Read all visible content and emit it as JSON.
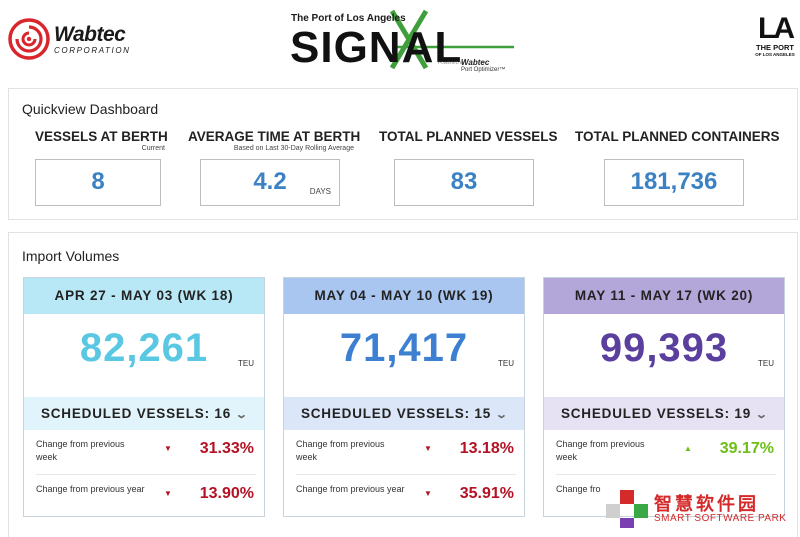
{
  "header": {
    "wabtec_name": "Wabtec",
    "wabtec_sub": "CORPORATION",
    "signal_tagline": "The Port of Los Angeles",
    "signal_word": "SIGNAL",
    "signal_powered": "POWERED BY",
    "signal_brand": "Wabtec",
    "signal_product": "Port Optimizer™",
    "la_mark": "LA",
    "la_title": "THE PORT",
    "la_sub": "OF LOS ANGELES",
    "colors": {
      "wabtec_red": "#d9262c",
      "signal_green": "#3f9f3a"
    }
  },
  "quickview": {
    "title": "Quickview Dashboard",
    "metrics": [
      {
        "label": "VESSELS AT BERTH",
        "sub": "Current",
        "value": "8",
        "unit": ""
      },
      {
        "label": "AVERAGE TIME AT BERTH",
        "sub": "Based on Last 30-Day Rolling Average",
        "value": "4.2",
        "unit": "DAYS"
      },
      {
        "label": "TOTAL PLANNED VESSELS",
        "sub": "",
        "value": "83",
        "unit": ""
      },
      {
        "label": "TOTAL PLANNED CONTAINERS",
        "sub": "",
        "value": "181,736",
        "unit": ""
      }
    ],
    "value_color": "#3b82c4"
  },
  "imports": {
    "title": "Import Volumes",
    "cards": [
      {
        "week": "APR 27 - MAY 03 (WK 18)",
        "total": "82,261",
        "unit": "TEU",
        "scheduled": "SCHEDULED VESSELS: 16",
        "colors": {
          "head": "#b8e7f5",
          "sched": "#e2f4fb",
          "total": "#5bc8e3"
        },
        "rows": [
          {
            "label": "Change from previous week",
            "direction": "down",
            "value": "31.33%"
          },
          {
            "label": "Change from previous year",
            "direction": "down",
            "value": "13.90%"
          }
        ]
      },
      {
        "week": "MAY 04 - MAY 10 (WK 19)",
        "total": "71,417",
        "unit": "TEU",
        "scheduled": "SCHEDULED VESSELS: 15",
        "colors": {
          "head": "#a8c6f0",
          "sched": "#dbe7f8",
          "total": "#3d7fd0"
        },
        "rows": [
          {
            "label": "Change from previous week",
            "direction": "down",
            "value": "13.18%"
          },
          {
            "label": "Change from previous year",
            "direction": "down",
            "value": "35.91%"
          }
        ]
      },
      {
        "week": "MAY 11 - MAY 17 (WK 20)",
        "total": "99,393",
        "unit": "TEU",
        "scheduled": "SCHEDULED VESSELS: 19",
        "colors": {
          "head": "#b3a6d8",
          "sched": "#e6e1f3",
          "total": "#5a3f9e"
        },
        "rows": [
          {
            "label": "Change from previous week",
            "direction": "up",
            "value": "39.17%"
          },
          {
            "label": "Change fro",
            "direction": "",
            "value": ""
          }
        ]
      }
    ],
    "status_colors": {
      "down": "#b41224",
      "up": "#6cc018"
    }
  },
  "watermark": {
    "title": "智慧软件园",
    "subtitle": "SMART SOFTWARE PARK",
    "colors": [
      "#d42a2a",
      "#3aa844",
      "#7a3fb0",
      "#cfcfcf"
    ]
  }
}
